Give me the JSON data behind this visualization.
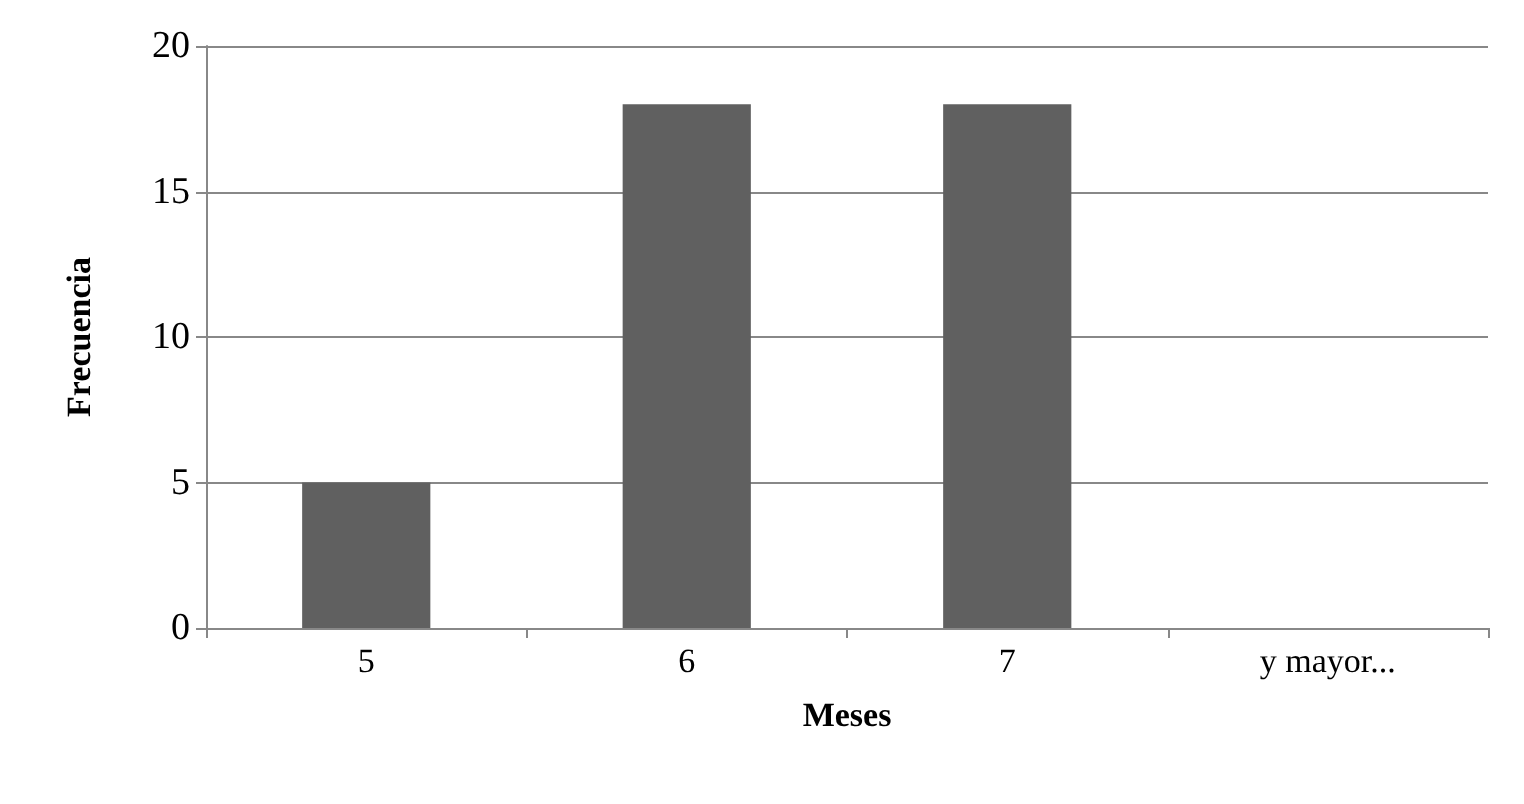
{
  "chart_data": {
    "type": "bar",
    "xlabel": "Meses",
    "ylabel": "Frecuencia",
    "categories": [
      "5",
      "6",
      "7",
      "y mayor..."
    ],
    "values": [
      5,
      18,
      18,
      0
    ],
    "color": "#606060",
    "ylim": [
      0,
      20
    ],
    "yticks": [
      0,
      5,
      10,
      15,
      20
    ],
    "grid": "y"
  }
}
